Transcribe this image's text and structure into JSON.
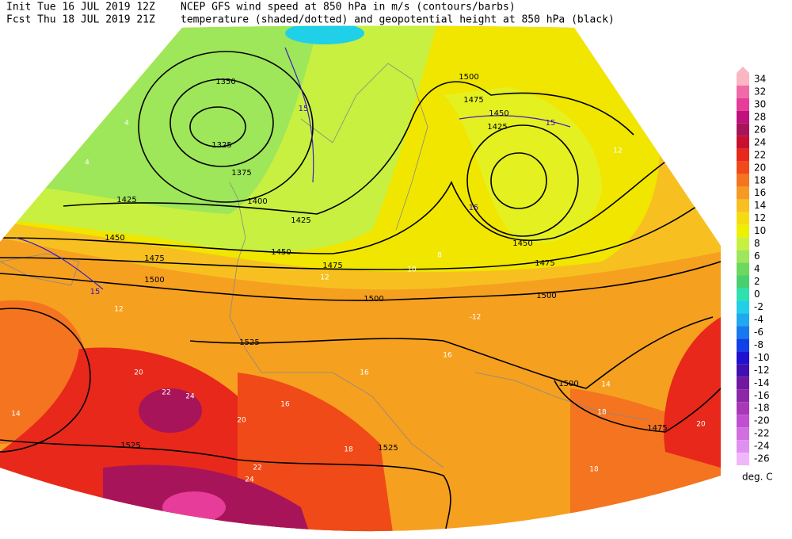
{
  "header": {
    "init": "Init  Tue 16 JUL 2019 12Z",
    "fcst": "Fcst Thu 18 JUL 2019 21Z",
    "line1": "NCEP GFS wind speed at 850 hPa in m/s (contours/barbs)",
    "line2": "temperature (shaded/dotted) and geopotential height at 850 hPa (black)"
  },
  "colorbar": {
    "levels": [
      34,
      32,
      30,
      28,
      26,
      24,
      22,
      20,
      18,
      16,
      14,
      12,
      10,
      8,
      6,
      4,
      2,
      0,
      -2,
      -4,
      -6,
      -8,
      -10,
      -12,
      -14,
      -16,
      -18,
      -20,
      -22,
      -24,
      -26
    ],
    "colors": [
      "#fbb6c4",
      "#f06aa8",
      "#e83c9a",
      "#c0127c",
      "#a8145a",
      "#c8102e",
      "#e8281a",
      "#f04a18",
      "#f47420",
      "#f69a22",
      "#f7c020",
      "#f5dc10",
      "#eef000",
      "#c8f040",
      "#9ee65a",
      "#6cd860",
      "#48d070",
      "#30e0b0",
      "#20d0e8",
      "#20a8f0",
      "#1878f0",
      "#1040e8",
      "#2010d0",
      "#4010b0",
      "#7018a0",
      "#8c28a8",
      "#a838b8",
      "#c050d0",
      "#d070e0",
      "#e090f0",
      "#f0b8f8"
    ],
    "unit": "deg. C"
  },
  "height_labels": [
    1350,
    1325,
    1375,
    1400,
    1425,
    1425,
    1450,
    1450,
    1475,
    1475,
    1500,
    1500,
    1500,
    1500,
    1475,
    1450,
    1425,
    1450,
    1475,
    1525,
    1525,
    1525,
    1500,
    1475
  ],
  "temperature_labels": [
    4,
    4,
    12,
    12,
    16,
    20,
    22,
    24,
    20,
    22,
    24,
    18,
    16,
    14,
    18,
    18,
    20,
    12,
    10,
    8,
    14,
    -12,
    16
  ],
  "wind_labels": [
    15,
    15,
    15,
    15
  ]
}
